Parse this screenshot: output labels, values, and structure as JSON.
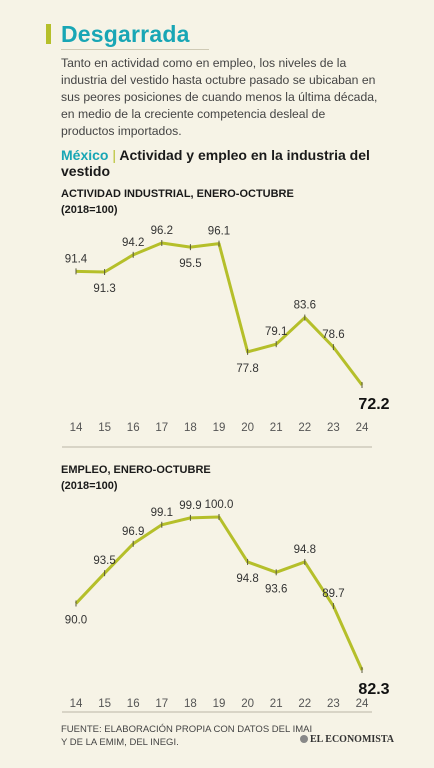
{
  "header": {
    "title": "Desgarrada",
    "intro": "Tanto en actividad como en empleo, los niveles de la industria del vestido hasta octubre pasado se ubicaban en sus peores posiciones de cuando menos la última década, en medio de la creciente competencia desleal de productos importados.",
    "country": "México",
    "separator": "|",
    "subtitle": "Actividad y empleo en la industria del vestido"
  },
  "colors": {
    "title": "#18a6b5",
    "accent_line": "#b5bf2a",
    "background": "#f6f3e6",
    "marker": "#5a5a3a"
  },
  "chart_data": [
    {
      "type": "line",
      "title_line1": "ACTIVIDAD INDUSTRIAL, ENERO-OCTUBRE",
      "title_line2": "(2018=100)",
      "categories": [
        "14",
        "15",
        "16",
        "17",
        "18",
        "19",
        "20",
        "21",
        "22",
        "23",
        "24"
      ],
      "values": [
        91.4,
        91.3,
        94.2,
        96.2,
        95.5,
        96.1,
        77.8,
        79.1,
        83.6,
        78.6,
        72.2
      ],
      "label_positions": [
        "above",
        "below",
        "above",
        "above",
        "below",
        "above",
        "below",
        "above",
        "above",
        "above",
        "below-bold"
      ],
      "ylim": [
        72.2,
        96.2
      ],
      "grid": false
    },
    {
      "type": "line",
      "title_line1": "EMPLEO, ENERO-OCTUBRE",
      "title_line2": "(2018=100)",
      "categories": [
        "14",
        "15",
        "16",
        "17",
        "18",
        "19",
        "20",
        "21",
        "22",
        "23",
        "24"
      ],
      "values": [
        90.0,
        93.5,
        96.9,
        99.1,
        99.9,
        100.0,
        94.8,
        93.6,
        94.8,
        89.7,
        82.3
      ],
      "value_labels": [
        "90.0",
        "93.5",
        "96.9",
        "99.1",
        "99.9",
        "100.0",
        "94.8",
        "93.6",
        "94.8",
        "89.7",
        "82.3"
      ],
      "label_positions": [
        "below",
        "above",
        "above",
        "above",
        "above",
        "above",
        "below",
        "below",
        "above",
        "above",
        "below-bold"
      ],
      "ylim": [
        82.3,
        100.0
      ],
      "grid": false
    }
  ],
  "footer": {
    "source_line1": "FUENTE: ELABORACIÓN PROPIA CON DATOS DEL IMAI",
    "source_line2": "Y DE LA EMIM, DEL INEGI.",
    "logo": "EL ECONOMISTA"
  }
}
